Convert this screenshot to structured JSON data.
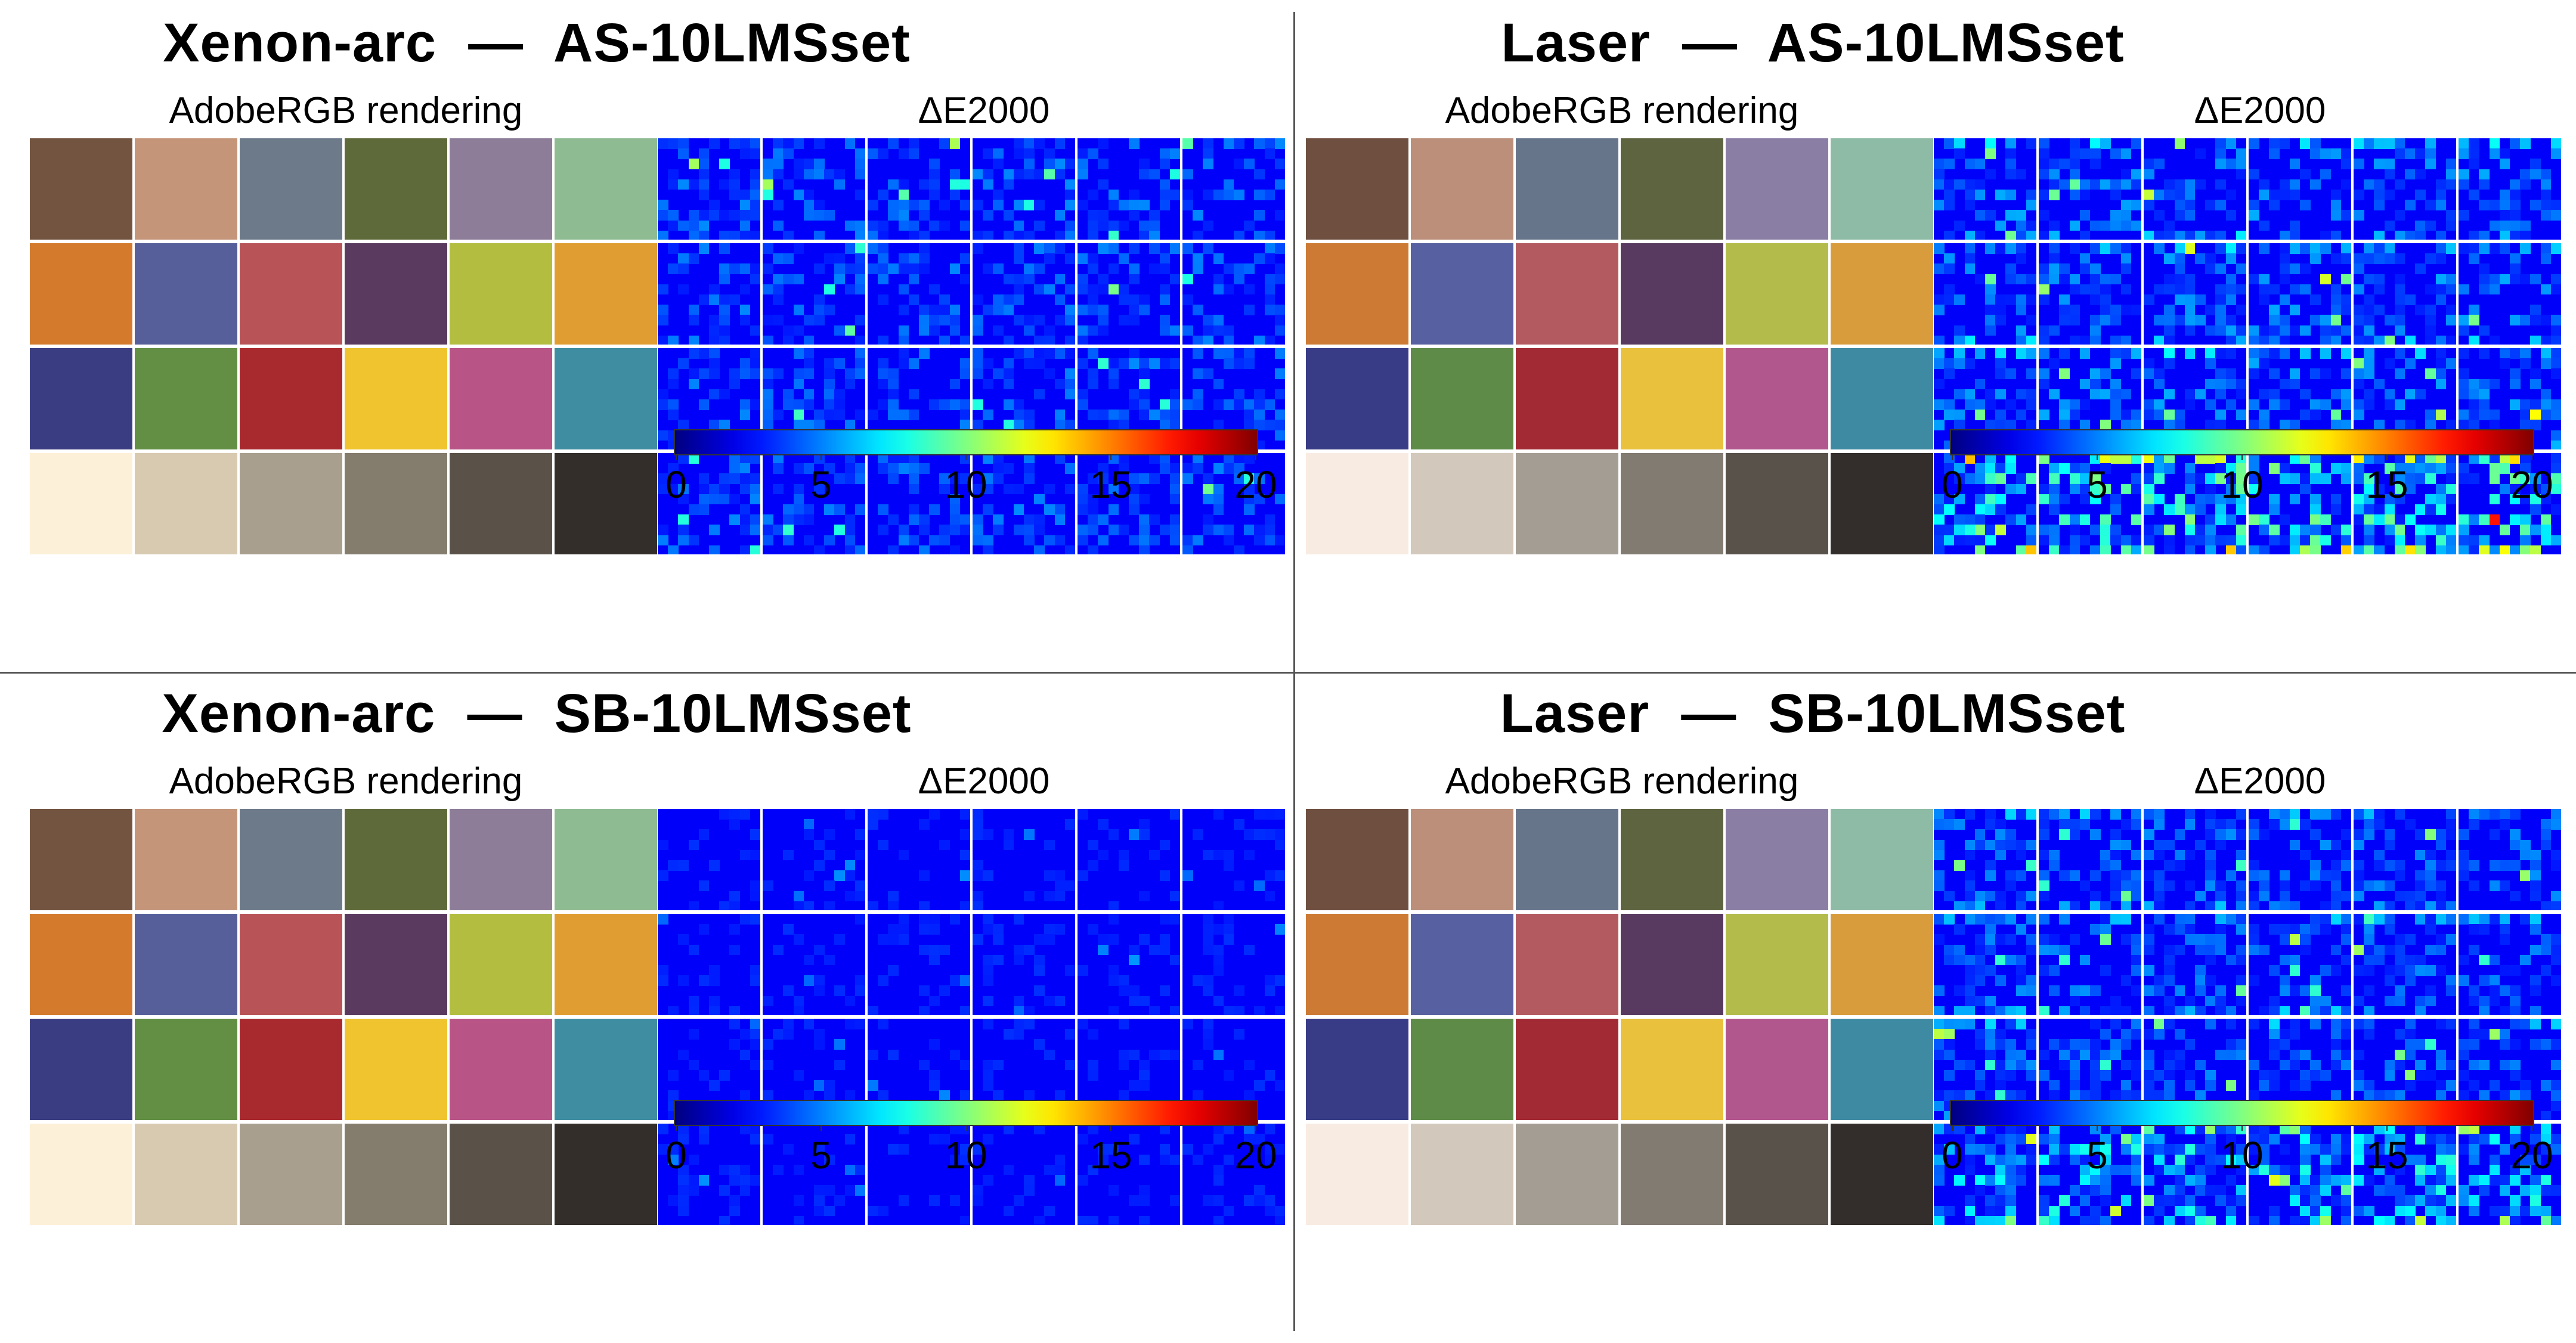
{
  "panels": [
    {
      "title": "Xenon-arc  —  AS-10LMSset",
      "rendering_label": "AdobeRGB rendering",
      "de_label": "ΔE2000",
      "illuminant": "xenon",
      "noise": 3.2,
      "hot_rows": 1.0
    },
    {
      "title": "Laser  —  AS-10LMSset",
      "rendering_label": "AdobeRGB rendering",
      "de_label": "ΔE2000",
      "illuminant": "laser",
      "noise": 4.0,
      "hot_rows": 2.2
    },
    {
      "title": "Xenon-arc  —  SB-10LMSset",
      "rendering_label": "AdobeRGB rendering",
      "de_label": "ΔE2000",
      "illuminant": "xenon",
      "noise": 1.2,
      "hot_rows": 1.0
    },
    {
      "title": "Laser  —  SB-10LMSset",
      "rendering_label": "AdobeRGB rendering",
      "de_label": "ΔE2000",
      "illuminant": "laser",
      "noise": 3.4,
      "hot_rows": 2.0
    }
  ],
  "colorbar": {
    "min": 0,
    "max": 20,
    "ticks": [
      "0",
      "5",
      "10",
      "15",
      "20"
    ],
    "colormap": "jet"
  },
  "chart_data": {
    "type": "heatmap",
    "grid_rows": 4,
    "grid_cols": 6,
    "checker_colors": [
      [
        "#735440",
        "#c5957a",
        "#6d7a8a",
        "#5f6a3a",
        "#8d7d98",
        "#8fbb92"
      ],
      [
        "#d37a2c",
        "#565f9a",
        "#b85358",
        "#5a3a5f",
        "#b3bd40",
        "#e09e32"
      ],
      [
        "#3b3d82",
        "#628f43",
        "#a8292e",
        "#efc42e",
        "#b85486",
        "#3f8da0"
      ],
      [
        "#fdf0d8",
        "#d8cab0",
        "#a99f8e",
        "#847c6c",
        "#5a5248",
        "#332e2a"
      ]
    ],
    "laser_checker_colors": [
      [
        "#6f4f40",
        "#bb8f7a",
        "#67758b",
        "#5d643f",
        "#8a7ea5",
        "#8ebba5"
      ],
      [
        "#cc7a34",
        "#5760a0",
        "#b35a60",
        "#583a60",
        "#b3bc4a",
        "#d89c3c"
      ],
      [
        "#383c86",
        "#5f8b48",
        "#a12a34",
        "#e9c13c",
        "#b2568e",
        "#3f8aa3"
      ],
      [
        "#f8ebe2",
        "#d3c8bc",
        "#a39d93",
        "#827b72",
        "#58524b",
        "#332e2b"
      ]
    ],
    "value_range": [
      0,
      20
    ],
    "colorbar_label": "ΔE2000"
  }
}
